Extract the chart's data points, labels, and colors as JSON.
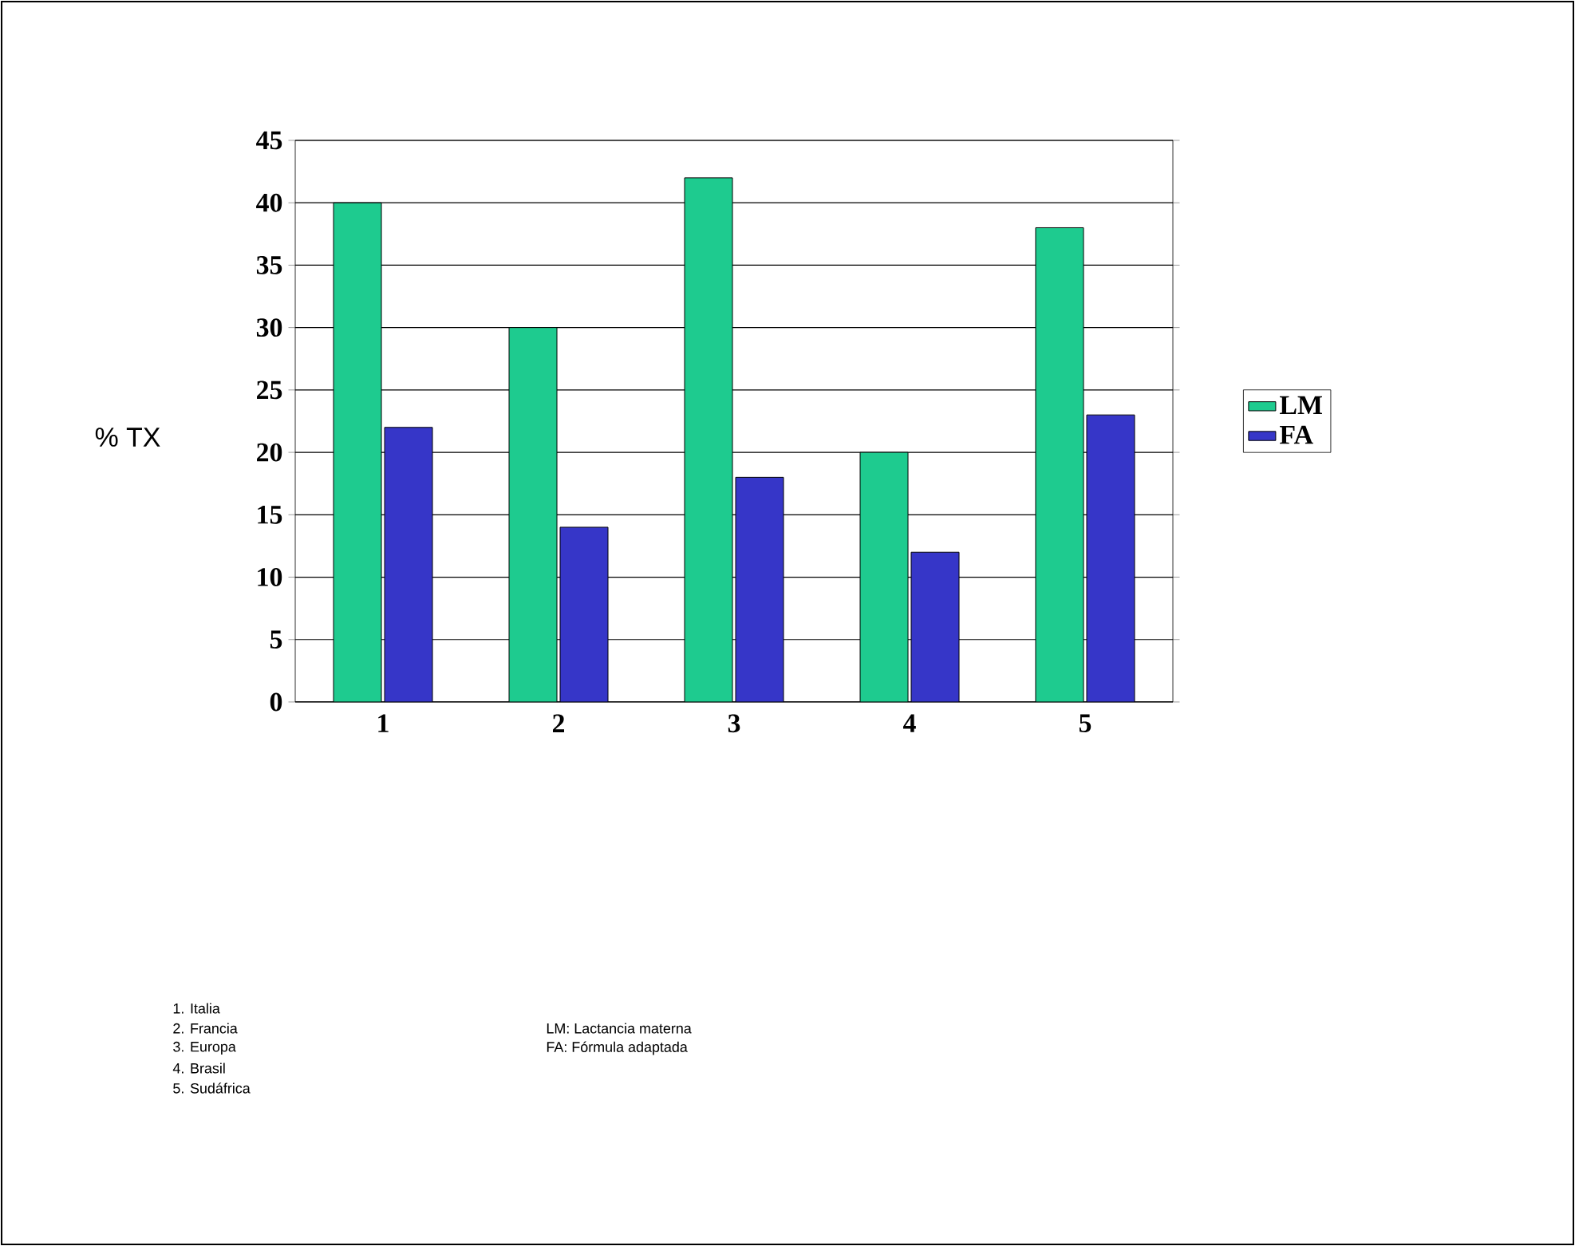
{
  "chart_data": {
    "type": "bar",
    "ylabel": "% TX",
    "categories": [
      "1",
      "2",
      "3",
      "4",
      "5"
    ],
    "series": [
      {
        "name": "LM",
        "color": "#1ecb8f",
        "values": [
          40,
          30,
          42,
          20,
          38
        ]
      },
      {
        "name": "FA",
        "color": "#3636c8",
        "values": [
          22,
          14,
          18,
          12,
          23
        ]
      }
    ],
    "ylim": [
      0,
      45
    ],
    "yticks": [
      0,
      5,
      10,
      15,
      20,
      25,
      30,
      35,
      40,
      45
    ],
    "grid": "y",
    "legend": "right",
    "annotations": [
      "1. Italia",
      "2. Francia",
      "3. Europa",
      "4. Brasil",
      "5. Sudáfrica",
      "LM: Lactancia materna",
      "FA: Fórmula adaptada"
    ]
  }
}
